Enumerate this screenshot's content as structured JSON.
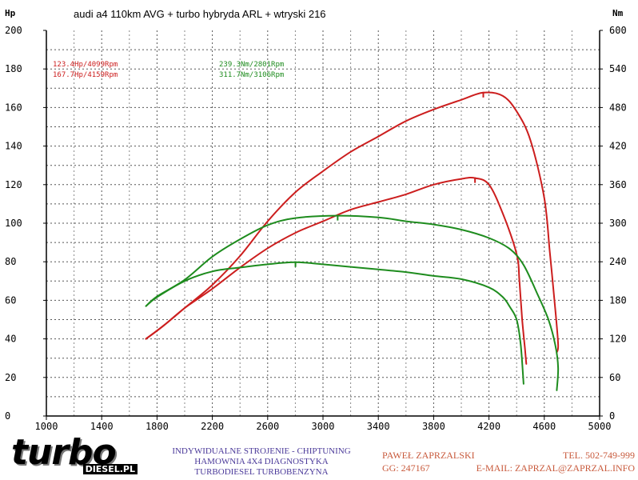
{
  "chart_data": {
    "type": "line",
    "title": "audi a4 110km AVG + turbo hybryda ARL + wtryski 216",
    "y_left_unit": "Hp",
    "y_right_unit": "Nm",
    "xlim": [
      1000,
      5000
    ],
    "x_ticks": [
      1000,
      1400,
      1800,
      2200,
      2600,
      3000,
      3400,
      3800,
      4200,
      4600,
      5000
    ],
    "ylim_left": [
      0,
      200
    ],
    "y_left_ticks": [
      0,
      20,
      40,
      60,
      80,
      100,
      120,
      140,
      160,
      180,
      200
    ],
    "ylim_right": [
      0,
      600
    ],
    "y_right_ticks": [
      0,
      60,
      120,
      180,
      240,
      300,
      360,
      420,
      480,
      540,
      600
    ],
    "grid": true,
    "series": [
      {
        "color": "#cc1e1e",
        "axis": "left",
        "x": [
          1720,
          1850,
          2000,
          2200,
          2400,
          2600,
          2800,
          3000,
          3200,
          3400,
          3600,
          3800,
          4000,
          4100,
          4200,
          4300,
          4400,
          4420,
          4440,
          4460,
          4470
        ],
        "y": [
          40,
          47,
          56,
          66,
          77,
          87,
          95,
          101,
          107,
          111,
          115,
          120,
          123,
          123.4,
          120,
          105,
          84,
          70,
          50,
          35,
          27
        ]
      },
      {
        "color": "#cc1e1e",
        "axis": "left",
        "x": [
          1720,
          1850,
          2000,
          2200,
          2400,
          2600,
          2800,
          3000,
          3200,
          3400,
          3600,
          3800,
          4000,
          4159,
          4300,
          4400,
          4500,
          4600,
          4640,
          4680,
          4700,
          4690
        ],
        "y": [
          40,
          47,
          56,
          68,
          83,
          101,
          116,
          127,
          137,
          145,
          153,
          159,
          164,
          167.7,
          166,
          158,
          143,
          113,
          85,
          55,
          37,
          33
        ]
      },
      {
        "color": "#1e8c1e",
        "axis": "right",
        "x": [
          1720,
          1800,
          2000,
          2200,
          2400,
          2600,
          2801,
          3000,
          3200,
          3400,
          3600,
          3800,
          4000,
          4200,
          4300,
          4350,
          4400,
          4430,
          4450
        ],
        "y": [
          171,
          185,
          210,
          225,
          231,
          236,
          239.3,
          236,
          232,
          228,
          224,
          218,
          213,
          200,
          185,
          170,
          150,
          110,
          50
        ]
      },
      {
        "color": "#1e8c1e",
        "axis": "right",
        "x": [
          1720,
          1800,
          2000,
          2200,
          2400,
          2600,
          2800,
          3106,
          3400,
          3600,
          3800,
          4000,
          4200,
          4350,
          4450,
          4550,
          4630,
          4680,
          4700,
          4690
        ],
        "y": [
          171,
          186,
          212,
          248,
          275,
          297,
          308,
          311.7,
          309,
          303,
          298,
          290,
          277,
          260,
          235,
          190,
          150,
          110,
          75,
          40
        ]
      }
    ],
    "annotations": [
      {
        "text": "123.4Hp/4099Rpm",
        "color": "#cc1e1e"
      },
      {
        "text": "167.7Hp/4159Rpm",
        "color": "#cc1e1e"
      },
      {
        "text": "239.3Nm/2801Rpm",
        "color": "#1e8c1e"
      },
      {
        "text": "311.7Nm/3106Rpm",
        "color": "#1e8c1e"
      }
    ],
    "peak_markers": [
      {
        "axis": "left",
        "x": 4099,
        "y": 123.4,
        "color": "#cc1e1e"
      },
      {
        "axis": "left",
        "x": 4159,
        "y": 167.7,
        "color": "#cc1e1e"
      },
      {
        "axis": "right",
        "x": 2801,
        "y": 239.3,
        "color": "#1e8c1e"
      },
      {
        "axis": "right",
        "x": 3106,
        "y": 311.7,
        "color": "#1e8c1e"
      }
    ]
  },
  "footer": {
    "logo_word": "turbo",
    "logo_domain": "DIESEL.PL",
    "services": [
      "INDYWIDUALNE STROJENIE - CHIPTUNING",
      "HAMOWNIA 4X4 DIAGNOSTYKA",
      "TURBODIESEL TURBOBENZYNA"
    ],
    "contact_name": "PAWEŁ ZAPRZALSKI",
    "contact_phone": "TEL. 502-749-999",
    "contact_gg": "GG: 247167",
    "contact_email": "E-MAIL: ZAPRZAL@ZAPRZAL.INFO"
  }
}
